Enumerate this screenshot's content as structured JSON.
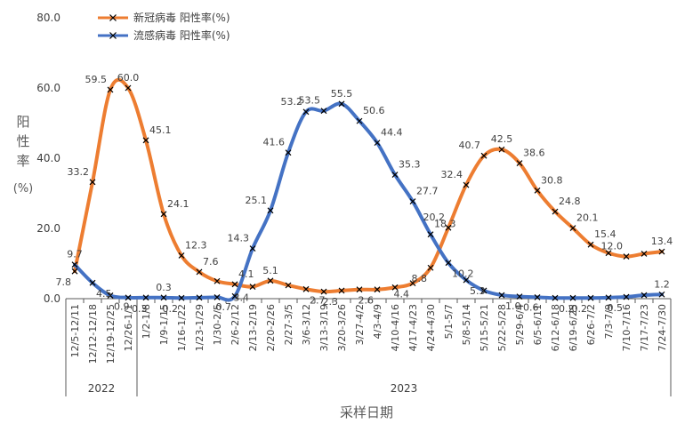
{
  "chart_data": {
    "type": "line",
    "categories": [
      "12/5-12/11",
      "12/12-12/18",
      "12/19-12/25",
      "12/26-1/1",
      "1/2-1/8",
      "1/9-1/15",
      "1/16-1/22",
      "1/23-1/29",
      "1/30-2/5",
      "2/6-2/12",
      "2/13-2/19",
      "2/20-2/26",
      "2/27-3/5",
      "3/6-3/12",
      "3/13-3/19",
      "3/20-3/26",
      "3/27-4/2",
      "4/3-4/9",
      "4/10-4/16",
      "4/17-4/23",
      "4/24-4/30",
      "5/1-5/7",
      "5/8-5/14",
      "5/15-5/21",
      "5/22-5/28",
      "5/29-6/4",
      "6/5-6/11",
      "6/12-6/18",
      "6/19-6/25",
      "6/26-7/2",
      "7/3-7/9",
      "7/10-7/16",
      "7/17-7/23",
      "7/24-7/30"
    ],
    "series": [
      {
        "name": "新冠病毒 阳性率(%)",
        "color": "#ED7D31",
        "values": [
          7.8,
          33.2,
          59.5,
          60.0,
          45.1,
          24.1,
          12.3,
          7.6,
          5.0,
          4.1,
          3.4,
          5.1,
          3.8,
          2.7,
          2.0,
          2.3,
          2.6,
          2.6,
          3.2,
          4.4,
          8.8,
          20.2,
          32.4,
          40.7,
          42.5,
          38.6,
          30.8,
          24.8,
          20.1,
          15.4,
          13.0,
          12.0,
          12.8,
          13.4
        ],
        "labels": [
          "7.8",
          "33.2",
          "59.5",
          "60.0",
          "45.1",
          "24.1",
          "12.3",
          "7.6",
          "",
          "4.1",
          "3.4",
          "5.1",
          "",
          "2.7",
          "",
          "2.3",
          "",
          "2.6",
          "",
          "4.4",
          "8.8",
          "20.2",
          "32.4",
          "40.7",
          "42.5",
          "38.6",
          "30.8",
          "24.8",
          "20.1",
          "15.4",
          "",
          "12.0",
          "",
          "13.4"
        ]
      },
      {
        "name": "流感病毒 阳性率(%)",
        "color": "#4472C4",
        "values": [
          9.7,
          4.5,
          0.9,
          0.3,
          0.3,
          0.3,
          0.2,
          0.3,
          0.4,
          0.7,
          14.3,
          25.1,
          41.6,
          53.2,
          53.5,
          55.5,
          50.6,
          44.4,
          35.3,
          27.7,
          18.3,
          10.2,
          5.3,
          2.3,
          1.0,
          0.6,
          0.4,
          0.2,
          0.2,
          0.2,
          0.3,
          0.5,
          1.0,
          1.2
        ],
        "labels": [
          "9.7",
          "4.5",
          "0.9",
          "0.3",
          "",
          "0.3",
          "0.2",
          "",
          "",
          "0.7",
          "14.3",
          "25.1",
          "41.6",
          "53.2",
          "53.5",
          "55.5",
          "50.6",
          "44.4",
          "35.3",
          "27.7",
          "18.3",
          "10.2",
          "5.3",
          "",
          "1.0",
          "0.6",
          "",
          "0.2",
          "",
          "0.2",
          "",
          "0.5",
          "",
          "1.2"
        ]
      }
    ],
    "ylabel": "阳性率(%)",
    "xlabel": "采样日期",
    "ylim": [
      0,
      80
    ],
    "yticks": [
      "0.0",
      "20.0",
      "40.0",
      "60.0",
      "80.0"
    ],
    "year_groups": [
      {
        "label": "2022",
        "span": 4
      },
      {
        "label": "2023",
        "span": 30
      }
    ],
    "legend_position": "top-left",
    "grid": false
  }
}
